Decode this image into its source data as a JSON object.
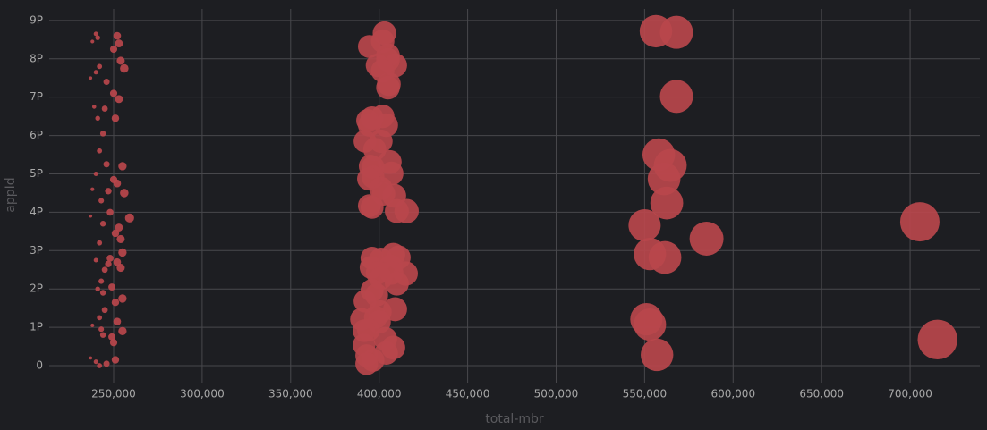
{
  "chart_data": {
    "type": "scatter",
    "x_label": "total-mbr",
    "y_label": "appId",
    "color": "#b8474c",
    "grid": true,
    "xlim": [
      213600,
      739400
    ],
    "ylim": [
      -443000000000000.0,
      9300000000000000.0
    ],
    "xticks": [
      {
        "value": 250000,
        "label": "250,000"
      },
      {
        "value": 300000,
        "label": "300,000"
      },
      {
        "value": 350000,
        "label": "350,000"
      },
      {
        "value": 400000,
        "label": "400,000"
      },
      {
        "value": 450000,
        "label": "450,000"
      },
      {
        "value": 500000,
        "label": "500,000"
      },
      {
        "value": 550000,
        "label": "550,000"
      },
      {
        "value": 600000,
        "label": "600,000"
      },
      {
        "value": 650000,
        "label": "650,000"
      },
      {
        "value": 700000,
        "label": "700,000"
      }
    ],
    "yticks": [
      0,
      {
        "value": 1000000000000000.0,
        "label": "1P"
      },
      {
        "value": 2000000000000000.0,
        "label": "2P"
      },
      {
        "value": 3000000000000000.0,
        "label": "3P"
      },
      {
        "value": 4000000000000000.0,
        "label": "4P"
      },
      {
        "value": 5000000000000000.0,
        "label": "5P"
      },
      {
        "value": 6000000000000000.0,
        "label": "6P"
      },
      {
        "value": 7000000000000000.0,
        "label": "7P"
      },
      {
        "value": 8000000000000000.0,
        "label": "8P"
      },
      {
        "value": 9000000000000000.0,
        "label": "9P"
      }
    ],
    "x": [
      240000,
      241000,
      238000,
      252000,
      253000,
      250000,
      242000,
      240000,
      254000,
      256000,
      237000,
      246000,
      250000,
      239000,
      245000,
      253000,
      241000,
      251000,
      244000,
      242000,
      246000,
      255000,
      240000,
      250000,
      238000,
      247000,
      252000,
      256000,
      243000,
      248000,
      237000,
      259000,
      253000,
      244000,
      251000,
      254000,
      242000,
      255000,
      240000,
      248000,
      247000,
      252000,
      245000,
      254000,
      243000,
      249000,
      241000,
      244000,
      255000,
      251000,
      245000,
      242000,
      252000,
      238000,
      243000,
      255000,
      249000,
      244000,
      250000,
      237000,
      240000,
      246000,
      251000,
      242000,
      403000,
      402000,
      394500,
      405000,
      405000,
      409000,
      399000,
      402000,
      405500,
      405000,
      402000,
      396000,
      393500,
      394500,
      404000,
      401000,
      392000,
      397500,
      406000,
      395000,
      396500,
      407000,
      396500,
      394000,
      401000,
      402500,
      408500,
      394500,
      396000,
      410000,
      415500,
      396000,
      401000,
      408000,
      411000,
      395500,
      399000,
      406500,
      407000,
      415000,
      401000,
      410000,
      396000,
      398500,
      392000,
      409000,
      400500,
      398000,
      390000,
      400000,
      394000,
      391500,
      403500,
      391500,
      408000,
      404000,
      393000,
      396500,
      393000,
      556400,
      568000,
      568000,
      558000,
      564500,
      561000,
      562500,
      550000,
      585000,
      553000,
      561500,
      551000,
      553000,
      557000,
      705500,
      715500
    ],
    "y": [
      8650000000000000.0,
      8550000000000000.0,
      8450000000000000.0,
      8600000000000000.0,
      8400000000000000.0,
      8250000000000000.0,
      7800000000000000.0,
      7650000000000000.0,
      7950000000000000.0,
      7750000000000000.0,
      7500000000000000.0,
      7400000000000000.0,
      7100000000000000.0,
      6750000000000000.0,
      6700000000000000.0,
      6950000000000000.0,
      6450000000000000.0,
      6450000000000000.0,
      6050000000000000.0,
      5600000000000000.0,
      5250000000000000.0,
      5200000000000000.0,
      5000000000000000.0,
      4850000000000000.0,
      4600000000000000.0,
      4550000000000000.0,
      4750000000000000.0,
      4500000000000000.0,
      4300000000000000.0,
      4000000000000000.0,
      3900000000000000.0,
      3850000000000000.0,
      3600000000000000.0,
      3700000000000000.0,
      3450000000000000.0,
      3300000000000000.0,
      3200000000000000.0,
      2950000000000000.0,
      2750000000000000.0,
      2800000000000000.0,
      2650000000000000.0,
      2700000000000000.0,
      2500000000000000.0,
      2550000000000000.0,
      2200000000000000.0,
      2050000000000000.0,
      2000000000000000.0,
      1900000000000000.0,
      1750000000000000.0,
      1650000000000000.0,
      1450000000000000.0,
      1250000000000000.0,
      1150000000000000.0,
      1050000000000000.0,
      950000000000000.0,
      900000000000000.0,
      750000000000000.0,
      800000000000000.0,
      600000000000000.0,
      200000000000000.0,
      100000000000000.0,
      50000000000000.0,
      150000000000000.0,
      0,
      8670000000000000.0,
      8460000000000000.0,
      8320000000000000.0,
      8090000000000000.0,
      7970000000000000.0,
      7830000000000000.0,
      7830000000000000.0,
      7690000000000000.0,
      7340000000000000.0,
      7250000000000000.0,
      6500000000000000.0,
      6460000000000000.0,
      6390000000000000.0,
      6270000000000000.0,
      6270000000000000.0,
      5850000000000000.0,
      5850000000000000.0,
      5640000000000000.0,
      5310000000000000.0,
      5200000000000000.0,
      5170000000000000.0,
      5010000000000000.0,
      4920000000000000.0,
      4870000000000000.0,
      4620000000000000.0,
      4480000000000000.0,
      4430000000000000.0,
      4170000000000000.0,
      4130000000000000.0,
      4030000000000000.0,
      4030000000000000.0,
      2800000000000000.0,
      2770000000000000.0,
      2890000000000000.0,
      2820000000000000.0,
      2560000000000000.0,
      2420000000000000.0,
      2590000000000000.0,
      2420000000000000.0,
      2400000000000000.0,
      2280000000000000.0,
      2140000000000000.0,
      1960000000000000.0,
      1840000000000000.0,
      1680000000000000.0,
      1470000000000000.0,
      1400000000000000.0,
      1260000000000000.0,
      1210000000000000.0,
      1140000000000000.0,
      930000000000000.0,
      910000000000000.0,
      700000000000000.0,
      540000000000000.0,
      470000000000000.0,
      330000000000000.0,
      260000000000000.0,
      140000000000000.0,
      50000000000000.0,
      8720000000000000.0,
      8690000000000000.0,
      7020000000000000.0,
      5500000000000000.0,
      5220000000000000.0,
      4870000000000000.0,
      4240000000000000.0,
      3660000000000000.0,
      3310000000000000.0,
      2910000000000000.0,
      2820000000000000.0,
      1210000000000000.0,
      1070000000000000.0,
      280000000000000.0,
      3750000000000000.0,
      680000000000000.0
    ]
  }
}
